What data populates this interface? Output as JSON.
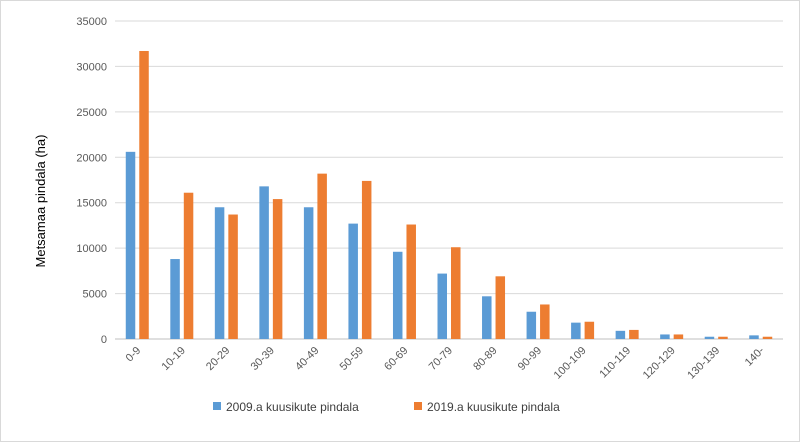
{
  "chart_data": {
    "type": "bar",
    "title": "",
    "xlabel": "",
    "ylabel": "Metsamaa pindala (ha)",
    "ylim": [
      0,
      35000
    ],
    "yticks": [
      0,
      5000,
      10000,
      15000,
      20000,
      25000,
      30000,
      35000
    ],
    "grid": true,
    "legend_position": "bottom",
    "categories": [
      "0-9",
      "10-19",
      "20-29",
      "30-39",
      "40-49",
      "50-59",
      "60-69",
      "70-79",
      "80-89",
      "90-99",
      "100-109",
      "110-119",
      "120-129",
      "130-139",
      "140-"
    ],
    "series": [
      {
        "name": "2009.a kuusikute pindala",
        "color": "#5b9bd5",
        "values": [
          20600,
          8800,
          14500,
          16800,
          14500,
          12700,
          9600,
          7200,
          4700,
          3000,
          1800,
          900,
          500,
          250,
          400
        ]
      },
      {
        "name": "2019.a kuusikute pindala",
        "color": "#ed7d31",
        "values": [
          31700,
          16100,
          13700,
          15400,
          18200,
          17400,
          12600,
          10100,
          6900,
          3800,
          1900,
          1000,
          500,
          250,
          250
        ]
      }
    ]
  }
}
